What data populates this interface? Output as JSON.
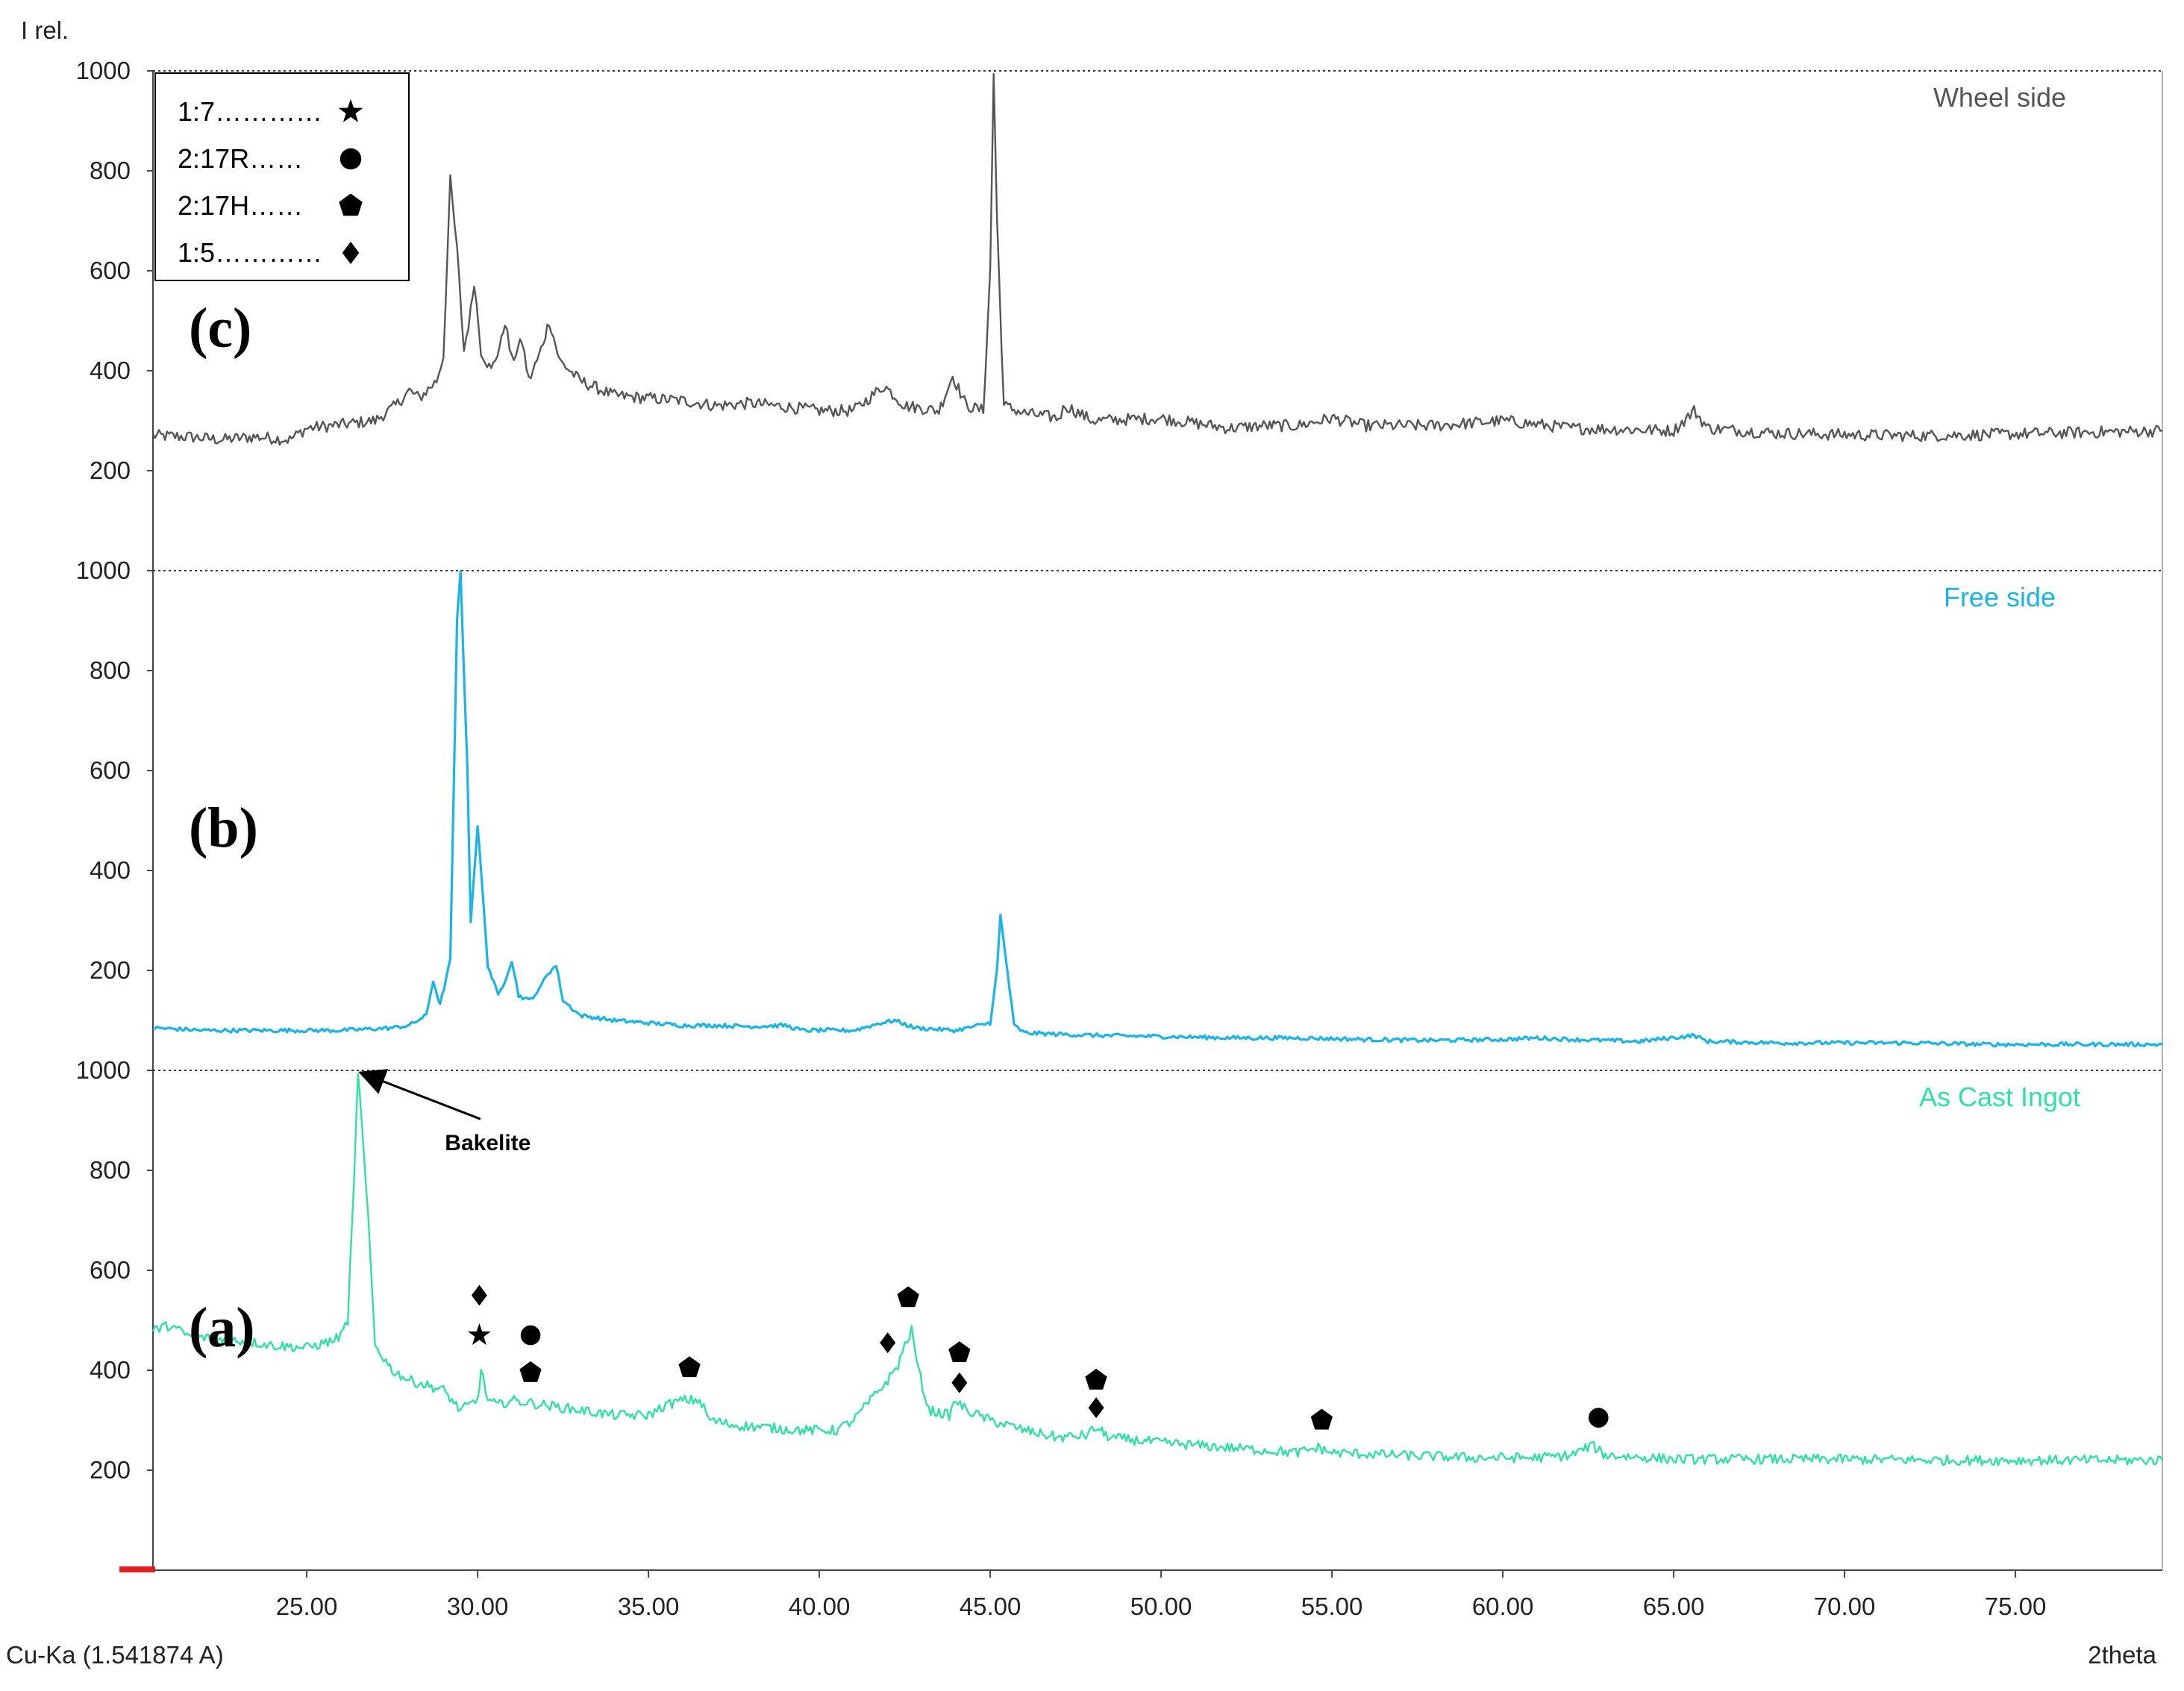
{
  "chart_data": {
    "type": "line",
    "y_axis_label": "I rel.",
    "x_axis_label": "2theta",
    "radiation_label": "Cu-Ka (1.541874 A)",
    "x_range": [
      20.5,
      79.3
    ],
    "x_ticks": [
      "25.00",
      "30.00",
      "35.00",
      "40.00",
      "45.00",
      "50.00",
      "55.00",
      "60.00",
      "65.00",
      "70.00",
      "75.00"
    ],
    "panel_y_range": [
      0,
      1000
    ],
    "y_ticks": [
      "200",
      "400",
      "600",
      "800",
      "1000"
    ],
    "grid": false,
    "legend": {
      "position": "top-left",
      "entries": [
        {
          "label": "1:7…………",
          "marker": "star"
        },
        {
          "label": "2:17R……",
          "marker": "circle"
        },
        {
          "label": "2:17H……",
          "marker": "pentagon"
        },
        {
          "label": "1:5…………",
          "marker": "diamond"
        }
      ]
    },
    "series": [
      {
        "name": "Wheel side",
        "panel_label": "(c)",
        "color": "#555555",
        "points": [
          [
            20.5,
            270
          ],
          [
            21.5,
            268
          ],
          [
            22.5,
            262
          ],
          [
            23.5,
            268
          ],
          [
            24.5,
            262
          ],
          [
            25.0,
            285
          ],
          [
            26.0,
            292
          ],
          [
            27.0,
            300
          ],
          [
            27.6,
            330
          ],
          [
            28.0,
            360
          ],
          [
            28.3,
            345
          ],
          [
            28.8,
            380
          ],
          [
            29.0,
            430
          ],
          [
            29.2,
            780
          ],
          [
            29.4,
            640
          ],
          [
            29.6,
            440
          ],
          [
            29.8,
            520
          ],
          [
            29.9,
            580
          ],
          [
            30.1,
            440
          ],
          [
            30.4,
            400
          ],
          [
            30.7,
            460
          ],
          [
            30.8,
            500
          ],
          [
            31.0,
            420
          ],
          [
            31.3,
            460
          ],
          [
            31.5,
            380
          ],
          [
            31.8,
            430
          ],
          [
            32.1,
            500
          ],
          [
            32.4,
            420
          ],
          [
            33.0,
            380
          ],
          [
            34.0,
            350
          ],
          [
            35.0,
            345
          ],
          [
            36.0,
            340
          ],
          [
            37.0,
            330
          ],
          [
            38.0,
            335
          ],
          [
            39.0,
            328
          ],
          [
            40.0,
            320
          ],
          [
            41.0,
            320
          ],
          [
            41.9,
            370
          ],
          [
            42.5,
            330
          ],
          [
            43.5,
            320
          ],
          [
            43.9,
            390
          ],
          [
            44.3,
            330
          ],
          [
            44.8,
            320
          ],
          [
            45.0,
            600
          ],
          [
            45.1,
            995
          ],
          [
            45.2,
            700
          ],
          [
            45.4,
            330
          ],
          [
            46.0,
            315
          ],
          [
            47.0,
            305
          ],
          [
            47.2,
            330
          ],
          [
            48.0,
            300
          ],
          [
            50.0,
            305
          ],
          [
            52.0,
            285
          ],
          [
            53.0,
            290
          ],
          [
            54.0,
            290
          ],
          [
            55.0,
            305
          ],
          [
            56.0,
            290
          ],
          [
            58.0,
            290
          ],
          [
            60.0,
            300
          ],
          [
            62.0,
            285
          ],
          [
            64.0,
            282
          ],
          [
            65.0,
            280
          ],
          [
            65.6,
            320
          ],
          [
            66.0,
            285
          ],
          [
            68.0,
            275
          ],
          [
            70.0,
            272
          ],
          [
            72.0,
            270
          ],
          [
            74.0,
            272
          ],
          [
            76.0,
            275
          ],
          [
            78.0,
            278
          ],
          [
            79.3,
            280
          ]
        ]
      },
      {
        "name": "Free side",
        "panel_label": "(b)",
        "color": "#1ab4e6",
        "points": [
          [
            20.5,
            85
          ],
          [
            22.0,
            80
          ],
          [
            24.0,
            80
          ],
          [
            26.0,
            80
          ],
          [
            27.5,
            85
          ],
          [
            28.0,
            90
          ],
          [
            28.5,
            110
          ],
          [
            28.7,
            180
          ],
          [
            28.9,
            130
          ],
          [
            29.2,
            220
          ],
          [
            29.4,
            900
          ],
          [
            29.5,
            1000
          ],
          [
            29.7,
            600
          ],
          [
            29.8,
            300
          ],
          [
            30.0,
            490
          ],
          [
            30.1,
            400
          ],
          [
            30.3,
            210
          ],
          [
            30.6,
            150
          ],
          [
            30.8,
            180
          ],
          [
            31.0,
            220
          ],
          [
            31.2,
            150
          ],
          [
            31.5,
            140
          ],
          [
            31.8,
            160
          ],
          [
            32.0,
            190
          ],
          [
            32.3,
            210
          ],
          [
            32.5,
            140
          ],
          [
            33.0,
            110
          ],
          [
            34.0,
            100
          ],
          [
            35.0,
            95
          ],
          [
            36.0,
            90
          ],
          [
            37.0,
            90
          ],
          [
            38.0,
            88
          ],
          [
            39.0,
            90
          ],
          [
            39.5,
            80
          ],
          [
            41.0,
            80
          ],
          [
            41.8,
            95
          ],
          [
            42.2,
            100
          ],
          [
            42.8,
            85
          ],
          [
            44.0,
            80
          ],
          [
            45.0,
            95
          ],
          [
            45.2,
            200
          ],
          [
            45.3,
            310
          ],
          [
            45.5,
            200
          ],
          [
            45.7,
            90
          ],
          [
            46.0,
            75
          ],
          [
            48.0,
            70
          ],
          [
            50.0,
            68
          ],
          [
            52.0,
            65
          ],
          [
            54.0,
            65
          ],
          [
            56.0,
            62
          ],
          [
            58.0,
            60
          ],
          [
            60.0,
            62
          ],
          [
            61.0,
            65
          ],
          [
            62.0,
            62
          ],
          [
            64.0,
            58
          ],
          [
            65.6,
            70
          ],
          [
            66.0,
            58
          ],
          [
            68.0,
            55
          ],
          [
            70.0,
            55
          ],
          [
            72.0,
            55
          ],
          [
            74.0,
            52
          ],
          [
            76.0,
            52
          ],
          [
            78.0,
            52
          ],
          [
            79.3,
            52
          ]
        ]
      },
      {
        "name": "As Cast Ingot",
        "panel_label": "(a)",
        "color": "#2ee0a4",
        "points": [
          [
            20.5,
            480
          ],
          [
            21.0,
            490
          ],
          [
            21.5,
            470
          ],
          [
            22.0,
            465
          ],
          [
            23.0,
            460
          ],
          [
            24.0,
            450
          ],
          [
            25.0,
            445
          ],
          [
            25.8,
            460
          ],
          [
            26.0,
            470
          ],
          [
            26.2,
            500
          ],
          [
            26.4,
            800
          ],
          [
            26.5,
            1000
          ],
          [
            26.6,
            900
          ],
          [
            26.8,
            700
          ],
          [
            27.0,
            450
          ],
          [
            27.5,
            400
          ],
          [
            28.0,
            380
          ],
          [
            29.0,
            360
          ],
          [
            29.5,
            320
          ],
          [
            30.0,
            340
          ],
          [
            30.1,
            400
          ],
          [
            30.3,
            340
          ],
          [
            30.6,
            330
          ],
          [
            31.0,
            340
          ],
          [
            31.5,
            335
          ],
          [
            32.0,
            330
          ],
          [
            33.0,
            320
          ],
          [
            34.0,
            310
          ],
          [
            35.0,
            310
          ],
          [
            35.5,
            330
          ],
          [
            36.0,
            340
          ],
          [
            36.5,
            340
          ],
          [
            36.8,
            300
          ],
          [
            37.5,
            290
          ],
          [
            38.5,
            285
          ],
          [
            39.5,
            280
          ],
          [
            40.5,
            280
          ],
          [
            41.0,
            300
          ],
          [
            41.5,
            340
          ],
          [
            42.0,
            380
          ],
          [
            42.3,
            410
          ],
          [
            42.5,
            450
          ],
          [
            42.7,
            480
          ],
          [
            42.9,
            400
          ],
          [
            43.2,
            320
          ],
          [
            43.8,
            310
          ],
          [
            44.0,
            340
          ],
          [
            44.3,
            320
          ],
          [
            45.0,
            300
          ],
          [
            46.0,
            280
          ],
          [
            47.0,
            265
          ],
          [
            47.8,
            270
          ],
          [
            48.1,
            285
          ],
          [
            48.5,
            265
          ],
          [
            50.0,
            255
          ],
          [
            52.0,
            245
          ],
          [
            54.0,
            235
          ],
          [
            54.6,
            245
          ],
          [
            55.0,
            235
          ],
          [
            57.0,
            230
          ],
          [
            59.0,
            225
          ],
          [
            61.0,
            225
          ],
          [
            62.0,
            230
          ],
          [
            62.6,
            250
          ],
          [
            63.0,
            230
          ],
          [
            65.0,
            222
          ],
          [
            67.0,
            222
          ],
          [
            70.0,
            222
          ],
          [
            73.0,
            220
          ],
          [
            76.0,
            220
          ],
          [
            79.3,
            220
          ]
        ]
      }
    ],
    "annotations": [
      {
        "text": "Bakelite",
        "arrow_to": [
          26.5,
          1000
        ],
        "text_at": [
          30.3,
          840
        ]
      }
    ],
    "phase_markers": [
      {
        "x": 30.05,
        "y": 550,
        "marker": "diamond"
      },
      {
        "x": 30.05,
        "y": 470,
        "marker": "star"
      },
      {
        "x": 31.55,
        "y": 470,
        "marker": "circle"
      },
      {
        "x": 31.55,
        "y": 395,
        "marker": "pentagon"
      },
      {
        "x": 36.2,
        "y": 405,
        "marker": "pentagon"
      },
      {
        "x": 42.0,
        "y": 455,
        "marker": "diamond"
      },
      {
        "x": 42.6,
        "y": 545,
        "marker": "pentagon"
      },
      {
        "x": 44.1,
        "y": 435,
        "marker": "pentagon"
      },
      {
        "x": 44.1,
        "y": 375,
        "marker": "diamond"
      },
      {
        "x": 48.1,
        "y": 380,
        "marker": "pentagon"
      },
      {
        "x": 48.1,
        "y": 325,
        "marker": "diamond"
      },
      {
        "x": 54.7,
        "y": 300,
        "marker": "pentagon"
      },
      {
        "x": 62.8,
        "y": 305,
        "marker": "circle"
      }
    ]
  }
}
